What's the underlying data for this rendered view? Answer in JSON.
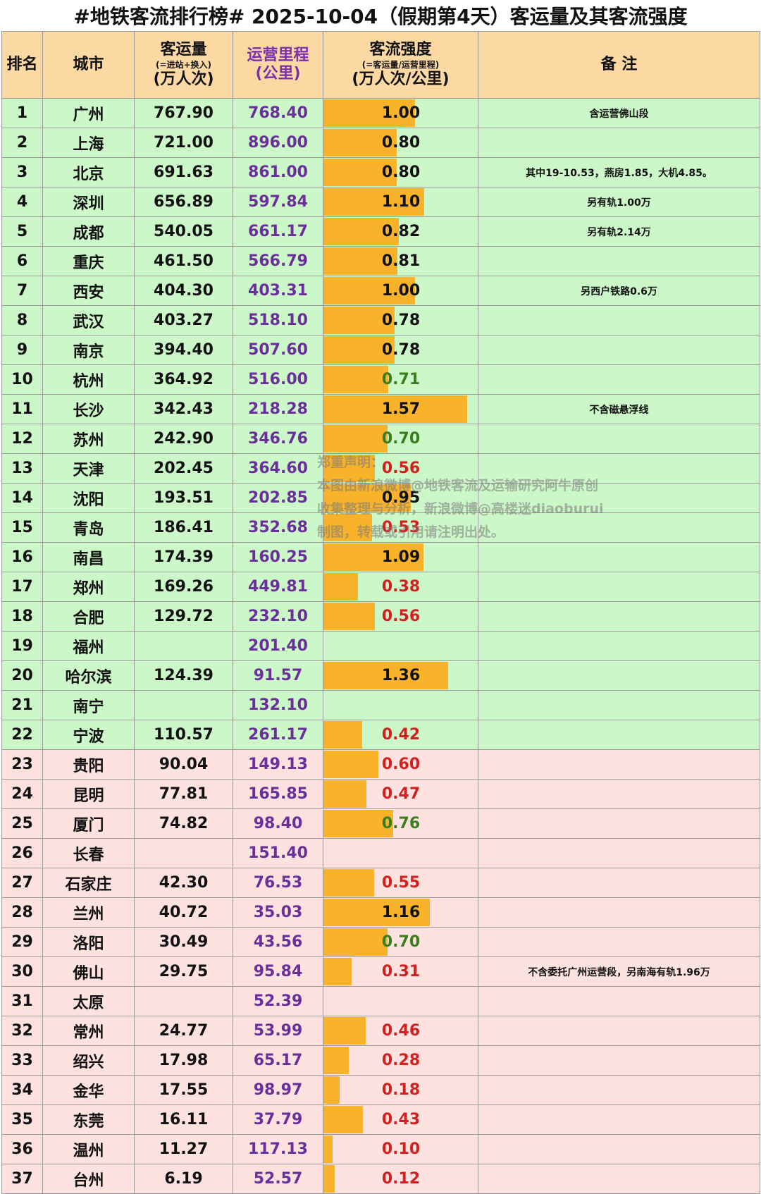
{
  "title": "#地铁客流排行榜# 2025-10-04（假期第4天）客运量及其客流强度",
  "header": {
    "rank": "排名",
    "city": "城市",
    "volume": {
      "line1": "客运量",
      "line2": "(=进站+换入)",
      "line3": "(万人次)"
    },
    "length": {
      "line1": "运营里程",
      "line2": "(公里)"
    },
    "intensity": {
      "line1": "客流强度",
      "line2": "(=客运量/运营里程)",
      "line3": "(万人次/公里)"
    },
    "note": "备 注"
  },
  "colors": {
    "green_row": "#ccf7c8",
    "pink_row": "#fde2e0",
    "bar": "#f9b32a",
    "value_high": "#111111",
    "value_mid": "#3a7d1e",
    "value_low": "#d21f1f",
    "length_text": "#6a2f9a"
  },
  "rows": [
    {
      "rank": "1",
      "city": "广州",
      "volume": "767.90",
      "length": "768.40",
      "intensity": "1.00",
      "note": "含运营佛山段"
    },
    {
      "rank": "2",
      "city": "上海",
      "volume": "721.00",
      "length": "896.00",
      "intensity": "0.80",
      "note": ""
    },
    {
      "rank": "3",
      "city": "北京",
      "volume": "691.63",
      "length": "861.00",
      "intensity": "0.80",
      "note": "其中19-10.53，燕房1.85，大机4.85。"
    },
    {
      "rank": "4",
      "city": "深圳",
      "volume": "656.89",
      "length": "597.84",
      "intensity": "1.10",
      "note": "另有轨1.00万"
    },
    {
      "rank": "5",
      "city": "成都",
      "volume": "540.05",
      "length": "661.17",
      "intensity": "0.82",
      "note": "另有轨2.14万"
    },
    {
      "rank": "6",
      "city": "重庆",
      "volume": "461.50",
      "length": "566.79",
      "intensity": "0.81",
      "note": ""
    },
    {
      "rank": "7",
      "city": "西安",
      "volume": "404.30",
      "length": "403.31",
      "intensity": "1.00",
      "note": "另西户铁路0.6万"
    },
    {
      "rank": "8",
      "city": "武汉",
      "volume": "403.27",
      "length": "518.10",
      "intensity": "0.78",
      "note": ""
    },
    {
      "rank": "9",
      "city": "南京",
      "volume": "394.40",
      "length": "507.60",
      "intensity": "0.78",
      "note": ""
    },
    {
      "rank": "10",
      "city": "杭州",
      "volume": "364.92",
      "length": "516.00",
      "intensity": "0.71",
      "note": ""
    },
    {
      "rank": "11",
      "city": "长沙",
      "volume": "342.43",
      "length": "218.28",
      "intensity": "1.57",
      "note": "不含磁悬浮线"
    },
    {
      "rank": "12",
      "city": "苏州",
      "volume": "242.90",
      "length": "346.76",
      "intensity": "0.70",
      "note": ""
    },
    {
      "rank": "13",
      "city": "天津",
      "volume": "202.45",
      "length": "364.60",
      "intensity": "0.56",
      "note": ""
    },
    {
      "rank": "14",
      "city": "沈阳",
      "volume": "193.51",
      "length": "202.85",
      "intensity": "0.95",
      "note": ""
    },
    {
      "rank": "15",
      "city": "青岛",
      "volume": "186.41",
      "length": "352.68",
      "intensity": "0.53",
      "note": ""
    },
    {
      "rank": "16",
      "city": "南昌",
      "volume": "174.39",
      "length": "160.25",
      "intensity": "1.09",
      "note": ""
    },
    {
      "rank": "17",
      "city": "郑州",
      "volume": "169.26",
      "length": "449.81",
      "intensity": "0.38",
      "note": ""
    },
    {
      "rank": "18",
      "city": "合肥",
      "volume": "129.72",
      "length": "232.10",
      "intensity": "0.56",
      "note": ""
    },
    {
      "rank": "19",
      "city": "福州",
      "volume": "",
      "length": "201.40",
      "intensity": "",
      "note": ""
    },
    {
      "rank": "20",
      "city": "哈尔滨",
      "volume": "124.39",
      "length": "91.57",
      "intensity": "1.36",
      "note": ""
    },
    {
      "rank": "21",
      "city": "南宁",
      "volume": "",
      "length": "132.10",
      "intensity": "",
      "note": ""
    },
    {
      "rank": "22",
      "city": "宁波",
      "volume": "110.57",
      "length": "261.17",
      "intensity": "0.42",
      "note": ""
    },
    {
      "rank": "23",
      "city": "贵阳",
      "volume": "90.04",
      "length": "149.13",
      "intensity": "0.60",
      "note": ""
    },
    {
      "rank": "24",
      "city": "昆明",
      "volume": "77.81",
      "length": "165.85",
      "intensity": "0.47",
      "note": ""
    },
    {
      "rank": "25",
      "city": "厦门",
      "volume": "74.82",
      "length": "98.40",
      "intensity": "0.76",
      "note": ""
    },
    {
      "rank": "26",
      "city": "长春",
      "volume": "",
      "length": "151.40",
      "intensity": "",
      "note": ""
    },
    {
      "rank": "27",
      "city": "石家庄",
      "volume": "42.30",
      "length": "76.53",
      "intensity": "0.55",
      "note": ""
    },
    {
      "rank": "28",
      "city": "兰州",
      "volume": "40.72",
      "length": "35.03",
      "intensity": "1.16",
      "note": ""
    },
    {
      "rank": "29",
      "city": "洛阳",
      "volume": "30.49",
      "length": "43.56",
      "intensity": "0.70",
      "note": ""
    },
    {
      "rank": "30",
      "city": "佛山",
      "volume": "29.75",
      "length": "95.84",
      "intensity": "0.31",
      "note": "不含委托广州运营段，另南海有轨1.96万"
    },
    {
      "rank": "31",
      "city": "太原",
      "volume": "",
      "length": "52.39",
      "intensity": "",
      "note": ""
    },
    {
      "rank": "32",
      "city": "常州",
      "volume": "24.77",
      "length": "53.99",
      "intensity": "0.46",
      "note": ""
    },
    {
      "rank": "33",
      "city": "绍兴",
      "volume": "17.98",
      "length": "65.17",
      "intensity": "0.28",
      "note": ""
    },
    {
      "rank": "34",
      "city": "金华",
      "volume": "17.55",
      "length": "98.97",
      "intensity": "0.18",
      "note": ""
    },
    {
      "rank": "35",
      "city": "东莞",
      "volume": "16.11",
      "length": "37.79",
      "intensity": "0.43",
      "note": ""
    },
    {
      "rank": "36",
      "city": "温州",
      "volume": "11.27",
      "length": "117.13",
      "intensity": "0.10",
      "note": ""
    },
    {
      "rank": "37",
      "city": "台州",
      "volume": "6.19",
      "length": "52.57",
      "intensity": "0.12",
      "note": ""
    }
  ],
  "watermark": {
    "line1": "郑重声明：",
    "line2": "本图由新浪微博@地铁客流及运输研究阿牛原创",
    "line3": "收集整理与分析，新浪微博@高楼迷diaoburui",
    "line4": "制图，转载或引用请注明出处。"
  }
}
